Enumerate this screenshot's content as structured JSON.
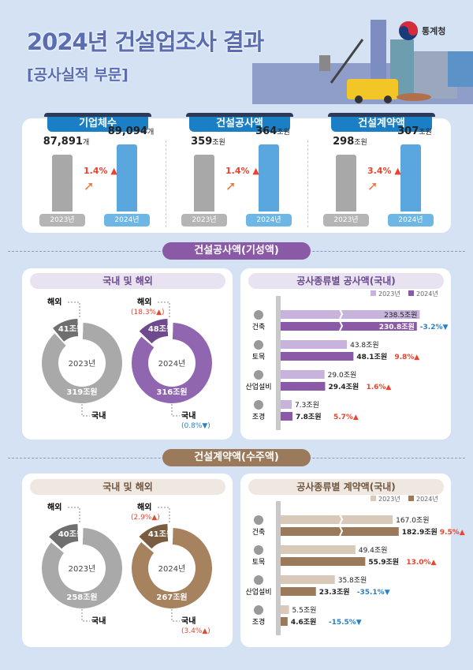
{
  "header": {
    "title": "2024년 건설업조사 결과",
    "subtitle": "[공사실적 부문]",
    "logo_text": "통계청"
  },
  "overview": {
    "years": [
      "2023년",
      "2024년"
    ],
    "items": [
      {
        "label": "기업체수",
        "v2023": "87,891",
        "v2024": "89,094",
        "unit": "개",
        "change": "1.4%"
      },
      {
        "label": "건설공사액",
        "v2023": "359",
        "v2024": "364",
        "unit": "조원",
        "change": "1.4%"
      },
      {
        "label": "건설계약액",
        "v2023": "298",
        "v2024": "307",
        "unit": "조원",
        "change": "3.4%"
      }
    ]
  },
  "colors": {
    "blue": "#1a7fc4",
    "purple": "#8a5aa6",
    "brown": "#9a7a5b",
    "up": "#e8442e",
    "down": "#2a7fc6"
  },
  "sections": [
    {
      "title": "건설공사액(기성액)",
      "donut_title": "국내 및 해외",
      "bar_title": "공사종류별 공사액(국내)"
    },
    {
      "title": "건설계약액(수주액)",
      "donut_title": "국내 및 해외",
      "bar_title": "공사종류별 계약액(국내)"
    }
  ],
  "chart_data": [
    {
      "type": "pie",
      "variant": "donut",
      "section": "건설공사액(기성액)",
      "unit": "조원",
      "labels": [
        "해외",
        "국내"
      ],
      "years": [
        {
          "year": "2023년",
          "values": [
            41,
            319
          ]
        },
        {
          "year": "2024년",
          "values": [
            48,
            316
          ],
          "changes": [
            "18.3%",
            "0.8%"
          ],
          "directions": [
            "up",
            "down"
          ]
        }
      ]
    },
    {
      "type": "bar",
      "orientation": "horizontal",
      "title": "공사종류별 공사액(국내)",
      "unit": "조원",
      "categories": [
        "건축",
        "토목",
        "산업설비",
        "조경"
      ],
      "series": [
        {
          "name": "2023년",
          "values": [
            238.5,
            43.8,
            29.0,
            7.3
          ]
        },
        {
          "name": "2024년",
          "values": [
            230.8,
            48.1,
            29.4,
            7.8
          ]
        }
      ],
      "changes": [
        "-3.2%",
        "9.8%",
        "1.6%",
        "5.7%"
      ],
      "directions": [
        "down",
        "up",
        "up",
        "up"
      ],
      "axis_break": "건축",
      "legend": "top-right"
    },
    {
      "type": "pie",
      "variant": "donut",
      "section": "건설계약액(수주액)",
      "unit": "조원",
      "labels": [
        "해외",
        "국내"
      ],
      "years": [
        {
          "year": "2023년",
          "values": [
            40,
            258
          ]
        },
        {
          "year": "2024년",
          "values": [
            41,
            267
          ],
          "changes": [
            "2.9%",
            "3.4%"
          ],
          "directions": [
            "up",
            "up"
          ]
        }
      ]
    },
    {
      "type": "bar",
      "orientation": "horizontal",
      "title": "공사종류별 계약액(국내)",
      "unit": "조원",
      "categories": [
        "건축",
        "토목",
        "산업설비",
        "조경"
      ],
      "series": [
        {
          "name": "2023년",
          "values": [
            167.0,
            49.4,
            35.8,
            5.5
          ]
        },
        {
          "name": "2024년",
          "values": [
            182.9,
            55.9,
            23.3,
            4.6
          ]
        }
      ],
      "changes": [
        "9.5%",
        "13.0%",
        "-35.1%",
        "-15.5%"
      ],
      "directions": [
        "up",
        "up",
        "down",
        "down"
      ],
      "axis_break": "건축",
      "legend": "top-right"
    }
  ]
}
